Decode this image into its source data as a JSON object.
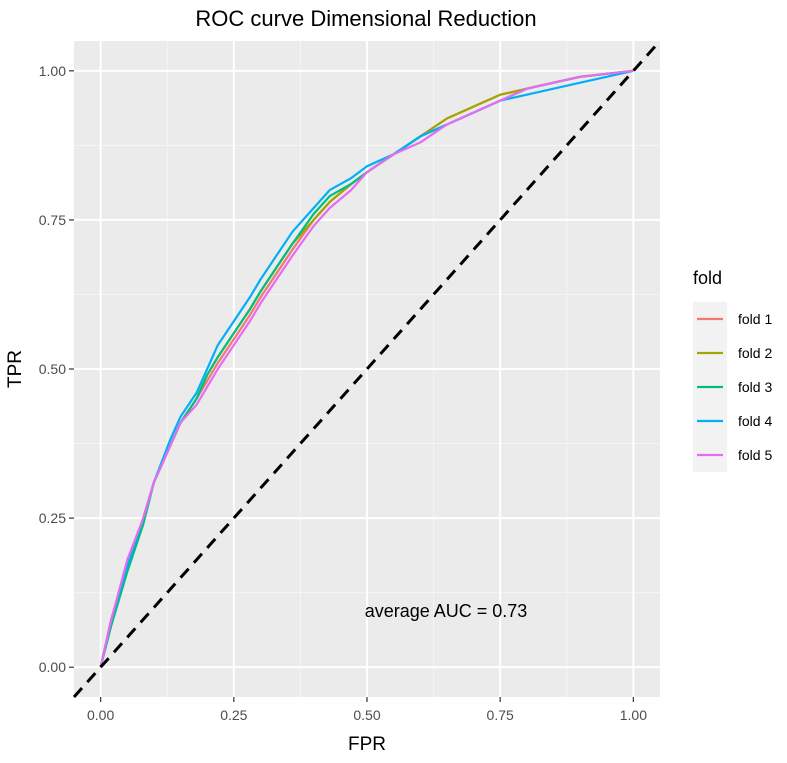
{
  "chart_data": {
    "type": "line",
    "title": "ROC curve Dimensional Reduction",
    "xlabel": "FPR",
    "ylabel": "TPR",
    "xlim": [
      -0.05,
      1.05
    ],
    "ylim": [
      -0.05,
      1.05
    ],
    "xticks": [
      "0.00",
      "0.25",
      "0.50",
      "0.75",
      "1.00"
    ],
    "yticks": [
      "0.00",
      "0.25",
      "0.50",
      "0.75",
      "1.00"
    ],
    "xtick_values": [
      0,
      0.25,
      0.5,
      0.75,
      1.0
    ],
    "ytick_values": [
      0,
      0.25,
      0.5,
      0.75,
      1.0
    ],
    "grid": true,
    "legend": {
      "title": "fold",
      "position": "right"
    },
    "annotation": "average AUC = 0.73",
    "reference_line": {
      "from": [
        0,
        0
      ],
      "to": [
        1,
        1
      ],
      "style": "dashed",
      "color": "#000000"
    },
    "series": [
      {
        "name": "fold 1",
        "color": "#F8766D",
        "x": [
          0,
          0.02,
          0.05,
          0.08,
          0.1,
          0.13,
          0.15,
          0.18,
          0.2,
          0.22,
          0.25,
          0.28,
          0.3,
          0.33,
          0.36,
          0.4,
          0.43,
          0.47,
          0.5,
          0.55,
          0.6,
          0.65,
          0.7,
          0.75,
          0.8,
          0.85,
          0.9,
          0.95,
          1.0
        ],
        "y": [
          0,
          0.08,
          0.17,
          0.25,
          0.31,
          0.37,
          0.41,
          0.45,
          0.48,
          0.51,
          0.55,
          0.59,
          0.62,
          0.66,
          0.7,
          0.75,
          0.78,
          0.81,
          0.83,
          0.86,
          0.89,
          0.92,
          0.94,
          0.96,
          0.97,
          0.98,
          0.99,
          0.995,
          1.0
        ]
      },
      {
        "name": "fold 2",
        "color": "#A3A500",
        "x": [
          0,
          0.02,
          0.05,
          0.08,
          0.1,
          0.13,
          0.15,
          0.18,
          0.2,
          0.22,
          0.25,
          0.28,
          0.3,
          0.33,
          0.36,
          0.4,
          0.43,
          0.47,
          0.5,
          0.55,
          0.6,
          0.65,
          0.7,
          0.75,
          0.8,
          0.85,
          0.9,
          0.95,
          1.0
        ],
        "y": [
          0,
          0.08,
          0.17,
          0.25,
          0.31,
          0.37,
          0.41,
          0.45,
          0.49,
          0.52,
          0.56,
          0.6,
          0.63,
          0.67,
          0.71,
          0.75,
          0.78,
          0.81,
          0.83,
          0.86,
          0.89,
          0.92,
          0.94,
          0.96,
          0.97,
          0.98,
          0.99,
          0.995,
          1.0
        ]
      },
      {
        "name": "fold 3",
        "color": "#00BF7D",
        "x": [
          0,
          0.02,
          0.05,
          0.08,
          0.1,
          0.13,
          0.15,
          0.18,
          0.2,
          0.22,
          0.25,
          0.28,
          0.3,
          0.33,
          0.36,
          0.4,
          0.43,
          0.47,
          0.5,
          0.55,
          0.6,
          0.65,
          0.7,
          0.75,
          0.8,
          0.85,
          0.9,
          0.95,
          1.0
        ],
        "y": [
          0,
          0.07,
          0.16,
          0.24,
          0.31,
          0.37,
          0.41,
          0.45,
          0.49,
          0.52,
          0.56,
          0.6,
          0.63,
          0.67,
          0.71,
          0.76,
          0.79,
          0.81,
          0.83,
          0.86,
          0.89,
          0.91,
          0.93,
          0.95,
          0.97,
          0.98,
          0.99,
          0.995,
          1.0
        ]
      },
      {
        "name": "fold 4",
        "color": "#00B0F6",
        "x": [
          0,
          0.02,
          0.05,
          0.08,
          0.1,
          0.13,
          0.15,
          0.18,
          0.2,
          0.22,
          0.25,
          0.28,
          0.3,
          0.33,
          0.36,
          0.4,
          0.43,
          0.47,
          0.5,
          0.55,
          0.6,
          0.65,
          0.7,
          0.75,
          0.8,
          0.85,
          0.9,
          0.95,
          1.0
        ],
        "y": [
          0,
          0.08,
          0.17,
          0.25,
          0.31,
          0.38,
          0.42,
          0.46,
          0.5,
          0.54,
          0.58,
          0.62,
          0.65,
          0.69,
          0.73,
          0.77,
          0.8,
          0.82,
          0.84,
          0.86,
          0.89,
          0.91,
          0.93,
          0.95,
          0.96,
          0.97,
          0.98,
          0.99,
          1.0
        ]
      },
      {
        "name": "fold 5",
        "color": "#E76BF3",
        "x": [
          0,
          0.02,
          0.05,
          0.08,
          0.1,
          0.13,
          0.15,
          0.18,
          0.2,
          0.22,
          0.25,
          0.28,
          0.3,
          0.33,
          0.36,
          0.4,
          0.43,
          0.47,
          0.5,
          0.55,
          0.6,
          0.65,
          0.7,
          0.75,
          0.8,
          0.85,
          0.9,
          0.95,
          1.0
        ],
        "y": [
          0,
          0.08,
          0.18,
          0.25,
          0.31,
          0.37,
          0.41,
          0.44,
          0.47,
          0.5,
          0.54,
          0.58,
          0.61,
          0.65,
          0.69,
          0.74,
          0.77,
          0.8,
          0.83,
          0.86,
          0.88,
          0.91,
          0.93,
          0.95,
          0.97,
          0.98,
          0.99,
          0.995,
          1.0
        ]
      }
    ]
  }
}
